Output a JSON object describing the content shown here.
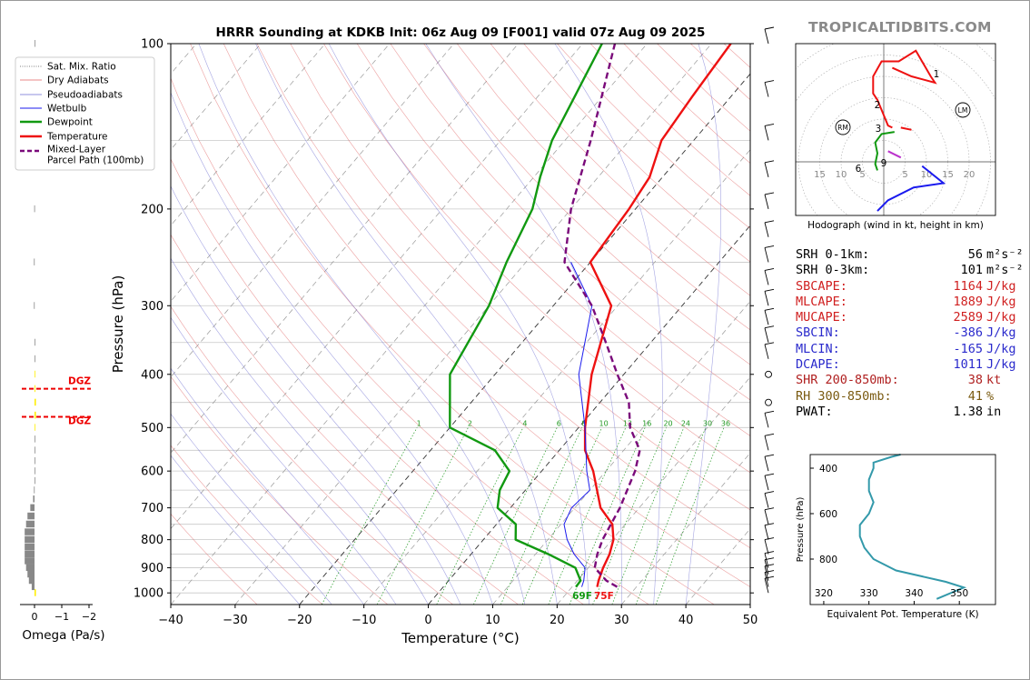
{
  "title": "HRRR Sounding at KDKB Init: 06z Aug 09 [F001] valid 07z Aug 09 2025",
  "brand": "TROPICALTIDBITS.COM",
  "colors": {
    "temperature": "#ee1111",
    "dewpoint": "#119911",
    "wetbulb": "#1a1aee",
    "parcel": "#7a0a7a",
    "dry_adiabat": "#e06060",
    "pseudoadiabat": "#6a6ad0",
    "mixing": "#229922",
    "isotherm": "#888888",
    "srh_text": "#000000",
    "cape": "#d02020",
    "cin": "#2a2acc",
    "shr": "#b02020",
    "rh": "#7a5a10",
    "thetae": "#3399aa",
    "omega_pos": "#888888",
    "omega_neg": "#ffee00"
  },
  "chart_data": [
    {
      "type": "line",
      "name": "skew-t",
      "xlabel": "Temperature (°C)",
      "ylabel": "Pressure (hPa)",
      "xlim": [
        -40,
        50
      ],
      "ylim": [
        1050,
        100
      ],
      "x_ticks": [
        -40,
        -30,
        -20,
        -10,
        0,
        10,
        20,
        30,
        40,
        50
      ],
      "y_ticks": [
        100,
        200,
        300,
        400,
        500,
        600,
        700,
        800,
        900,
        1000
      ],
      "x_tick_labels": [
        "−40",
        "−30",
        "−20",
        "−10",
        "0",
        "10",
        "20",
        "30",
        "40",
        "50"
      ],
      "y_tick_labels": [
        "100",
        "200",
        "300",
        "400",
        "500",
        "600",
        "700",
        "800",
        "900",
        "1000"
      ],
      "mixing_ratio_labels": [
        "1",
        "2",
        "4",
        "6",
        "8",
        "10",
        "13",
        "16",
        "20",
        "24",
        "30",
        "36"
      ],
      "legend": {
        "placement": "top-left",
        "entries": [
          "Sat. Mix. Ratio",
          "Dry Adiabats",
          "Pseudoadiabats",
          "Wetbulb",
          "Dewpoint",
          "Temperature",
          "Mixed-Layer\nParcel Path (100mb)"
        ]
      },
      "surface_labels": {
        "dewpoint": "69F",
        "temperature": "75F"
      },
      "series": [
        {
          "name": "Temperature",
          "x": [
            23.9,
            23.3,
            22.3,
            21.5,
            20.2,
            18.0,
            14.0,
            8.0,
            4.0,
            1.0,
            -5.0,
            -11.0,
            -20.0,
            -21.0,
            -22.0,
            -25.0,
            -26.0,
            -27.0
          ],
          "p": [
            975,
            950,
            900,
            850,
            800,
            750,
            700,
            600,
            550,
            500,
            400,
            300,
            250,
            200,
            175,
            150,
            125,
            100
          ]
        },
        {
          "name": "Dewpoint",
          "x": [
            20.6,
            20.5,
            18.0,
            12.0,
            5.0,
            3.0,
            -2.0,
            -4.0,
            -5.0,
            -10.0,
            -20.0,
            -27.0,
            -30.0,
            -33.0,
            -36.0,
            -39.0,
            -42.0,
            -47.0
          ],
          "p": [
            975,
            950,
            900,
            850,
            800,
            750,
            700,
            650,
            600,
            550,
            500,
            400,
            300,
            250,
            200,
            175,
            150,
            100
          ]
        },
        {
          "name": "Wetbulb",
          "x": [
            21.5,
            21.0,
            19.5,
            16.0,
            13.0,
            10.5,
            9.5,
            10.0,
            7.0,
            1.0,
            -7.0,
            -14.0,
            -23.0
          ],
          "p": [
            975,
            950,
            900,
            850,
            800,
            750,
            700,
            650,
            600,
            500,
            400,
            300,
            250
          ]
        },
        {
          "name": "Mixed-Layer Parcel Path (100mb)",
          "x": [
            27.0,
            24.5,
            21.0,
            19.6,
            18.5,
            17.0,
            14.5,
            12.5,
            8.0,
            4.5,
            -1.0,
            -7.0,
            -14.0,
            -24.0,
            -30.0,
            -36.0,
            -45.0
          ],
          "p": [
            975,
            950,
            900,
            850,
            800,
            700,
            600,
            550,
            500,
            450,
            400,
            350,
            300,
            250,
            200,
            150,
            100
          ]
        }
      ]
    },
    {
      "type": "bar",
      "name": "omega",
      "xlabel": "Omega (Pa/s)",
      "x_tick_labels": [
        "0",
        "−1",
        "−2"
      ],
      "annotations": [
        "DGZ",
        "DGZ"
      ],
      "p": [
        1000,
        975,
        950,
        925,
        900,
        875,
        850,
        825,
        800,
        775,
        750,
        725,
        700,
        675,
        650,
        625,
        600,
        575,
        550,
        525,
        500,
        475,
        450,
        425,
        400,
        375,
        350,
        300,
        250,
        200,
        150,
        100
      ],
      "values": [
        -0.05,
        0.1,
        0.2,
        0.25,
        0.3,
        0.35,
        0.35,
        0.35,
        0.35,
        0.35,
        0.3,
        0.25,
        0.15,
        0.05,
        0.02,
        0.0,
        0.0,
        0.0,
        0.0,
        0.0,
        -0.02,
        -0.05,
        -0.05,
        -0.03,
        -0.02,
        0.0,
        0.0,
        0.02,
        0.02,
        0.01,
        0.0,
        0.0
      ]
    },
    {
      "type": "line",
      "name": "hodograph",
      "xlabel": "Hodograph (wind in kt, height in km)",
      "ring_labels": [
        "15",
        "10",
        "5",
        "5",
        "10",
        "15",
        "20"
      ],
      "height_labels": [
        "1",
        "2",
        "3",
        "6",
        "9"
      ],
      "storm_markers": [
        "RM",
        "LM"
      ],
      "u": [
        -3.0,
        -2.5,
        -0.5,
        5.5,
        3.0,
        -2.0,
        -3.0,
        -1.0,
        -4.0,
        -3.0,
        -0.5,
        1.5,
        3.5,
        1.0,
        1.0,
        -1.5,
        -2.0,
        -0.5,
        2.0,
        4.5,
        9.0,
        12.0,
        16.0,
        3.0,
        -1.5
      ],
      "v": [
        -4.0,
        -3.0,
        -1.5,
        -0.5,
        1.0,
        2.0,
        4.5,
        6.5,
        8.5,
        9.5,
        12.5,
        13.5,
        16.0,
        18.0,
        20.0,
        21.5,
        24.5,
        28.5,
        29.0,
        30.0,
        30.5,
        29.0,
        24.0,
        24.5,
        21.0
      ],
      "note_segments": [
        "0-1 km green",
        "1-3 km purple",
        "3-9 km blue? upper red"
      ]
    },
    {
      "type": "line",
      "name": "theta-e",
      "xlabel": "Equivalent Pot. Temperature (K)",
      "ylabel": "Pressure (hPa)",
      "xlim": [
        317,
        358
      ],
      "ylim": [
        1000,
        340
      ],
      "x_ticks": [
        320,
        330,
        340,
        350
      ],
      "y_ticks": [
        400,
        600,
        800
      ],
      "x_tick_labels": [
        "320",
        "330",
        "340",
        "350"
      ],
      "y_tick_labels": [
        "400",
        "600",
        "800"
      ],
      "x": [
        345,
        351,
        347,
        336,
        331,
        329,
        328,
        328,
        330,
        331,
        330,
        330,
        331,
        331,
        335,
        337
      ],
      "p": [
        975,
        925,
        900,
        850,
        800,
        750,
        700,
        650,
        600,
        550,
        500,
        450,
        400,
        375,
        350,
        340
      ]
    }
  ],
  "stats": [
    {
      "key": "SRH 0-1km:",
      "value": "56",
      "unit": "m²s⁻²",
      "color_key": "srh_text"
    },
    {
      "key": "SRH 0-3km:",
      "value": "101",
      "unit": "m²s⁻²",
      "color_key": "srh_text"
    },
    {
      "key": "SBCAPE:",
      "value": "1164",
      "unit": "J/kg",
      "color_key": "cape"
    },
    {
      "key": "MLCAPE:",
      "value": "1889",
      "unit": "J/kg",
      "color_key": "cape"
    },
    {
      "key": "MUCAPE:",
      "value": "2589",
      "unit": "J/kg",
      "color_key": "cape"
    },
    {
      "key": "SBCIN:",
      "value": "-386",
      "unit": "J/kg",
      "color_key": "cin"
    },
    {
      "key": "MLCIN:",
      "value": "-165",
      "unit": "J/kg",
      "color_key": "cin"
    },
    {
      "key": "DCAPE:",
      "value": "1011",
      "unit": "J/kg",
      "color_key": "cin"
    },
    {
      "key": "SHR 200-850mb:",
      "value": "38",
      "unit": "kt",
      "color_key": "shr"
    },
    {
      "key": "RH 300-850mb:",
      "value": "41",
      "unit": "%",
      "color_key": "rh"
    },
    {
      "key": "PWAT:",
      "value": "1.38",
      "unit": "in",
      "color_key": "srh_text"
    }
  ]
}
